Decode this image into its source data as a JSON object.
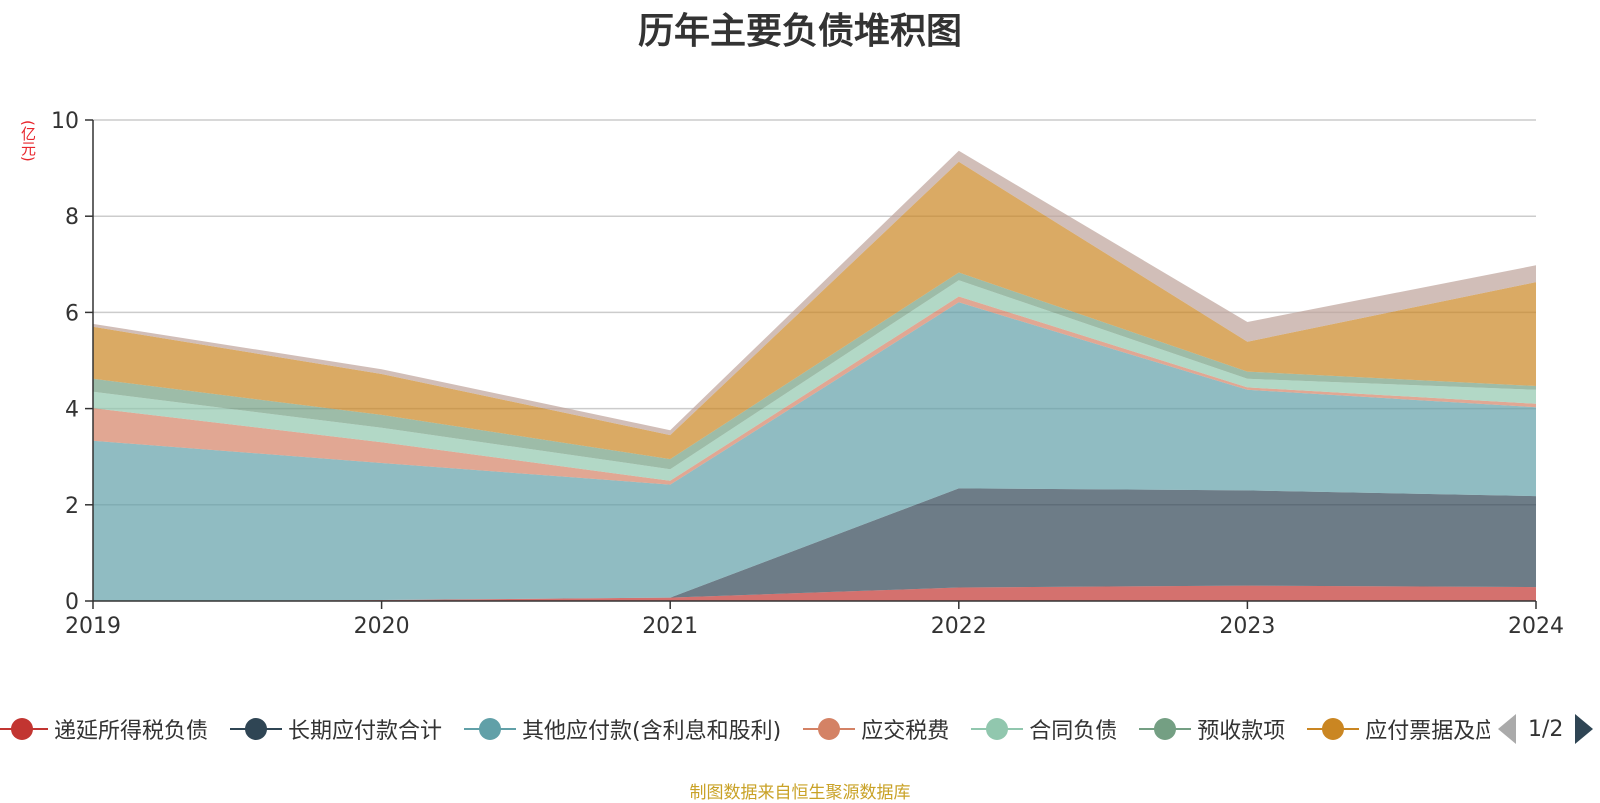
{
  "title": "历年主要负债堆积图",
  "unit": "(亿元)",
  "source": "制图数据来自恒生聚源数据库",
  "pager": {
    "page": "1/2"
  },
  "legend": [
    {
      "name": "递延所得税负债",
      "color": "#c23531"
    },
    {
      "name": "长期应付款合计",
      "color": "#2f4554"
    },
    {
      "name": "其他应付款(含利息和股利)",
      "color": "#61a0a8"
    },
    {
      "name": "应交税费",
      "color": "#d48265"
    },
    {
      "name": "合同负债",
      "color": "#91c7ae"
    },
    {
      "name": "预收款项",
      "color": "#749f83"
    },
    {
      "name": "应付票据及应付账款",
      "color": "#ca8622"
    }
  ],
  "chart_data": {
    "type": "area",
    "stacked": true,
    "title": "历年主要负债堆积图",
    "ylabel": "(亿元)",
    "ylim": [
      0,
      10
    ],
    "yticks": [
      0,
      2,
      4,
      6,
      8,
      10
    ],
    "grid": true,
    "legend_position": "bottom",
    "x": [
      "2019",
      "2020",
      "2021",
      "2022",
      "2023",
      "2024"
    ],
    "series": [
      {
        "name": "递延所得税负债",
        "color": "#c23531",
        "values": [
          0.0,
          0.02,
          0.07,
          0.28,
          0.32,
          0.29
        ]
      },
      {
        "name": "长期应付款合计",
        "color": "#2f4554",
        "values": [
          0.0,
          0.0,
          0.0,
          2.06,
          1.98,
          1.89
        ]
      },
      {
        "name": "其他应付款(含利息和股利)",
        "color": "#61a0a8",
        "values": [
          3.33,
          2.85,
          2.35,
          3.87,
          2.09,
          1.85
        ]
      },
      {
        "name": "应交税费",
        "color": "#d48265",
        "values": [
          0.68,
          0.43,
          0.08,
          0.12,
          0.05,
          0.07
        ]
      },
      {
        "name": "合同负债",
        "color": "#91c7ae",
        "values": [
          0.34,
          0.3,
          0.24,
          0.34,
          0.18,
          0.29
        ]
      },
      {
        "name": "预收款项",
        "color": "#749f83",
        "values": [
          0.27,
          0.27,
          0.21,
          0.16,
          0.15,
          0.08
        ]
      },
      {
        "name": "应付票据及应付账款",
        "color": "#ca8622",
        "values": [
          1.08,
          0.85,
          0.5,
          2.3,
          0.62,
          2.16
        ]
      },
      {
        "name": "",
        "color": "#bda29a",
        "values": [
          0.06,
          0.1,
          0.1,
          0.23,
          0.41,
          0.35
        ]
      }
    ]
  }
}
